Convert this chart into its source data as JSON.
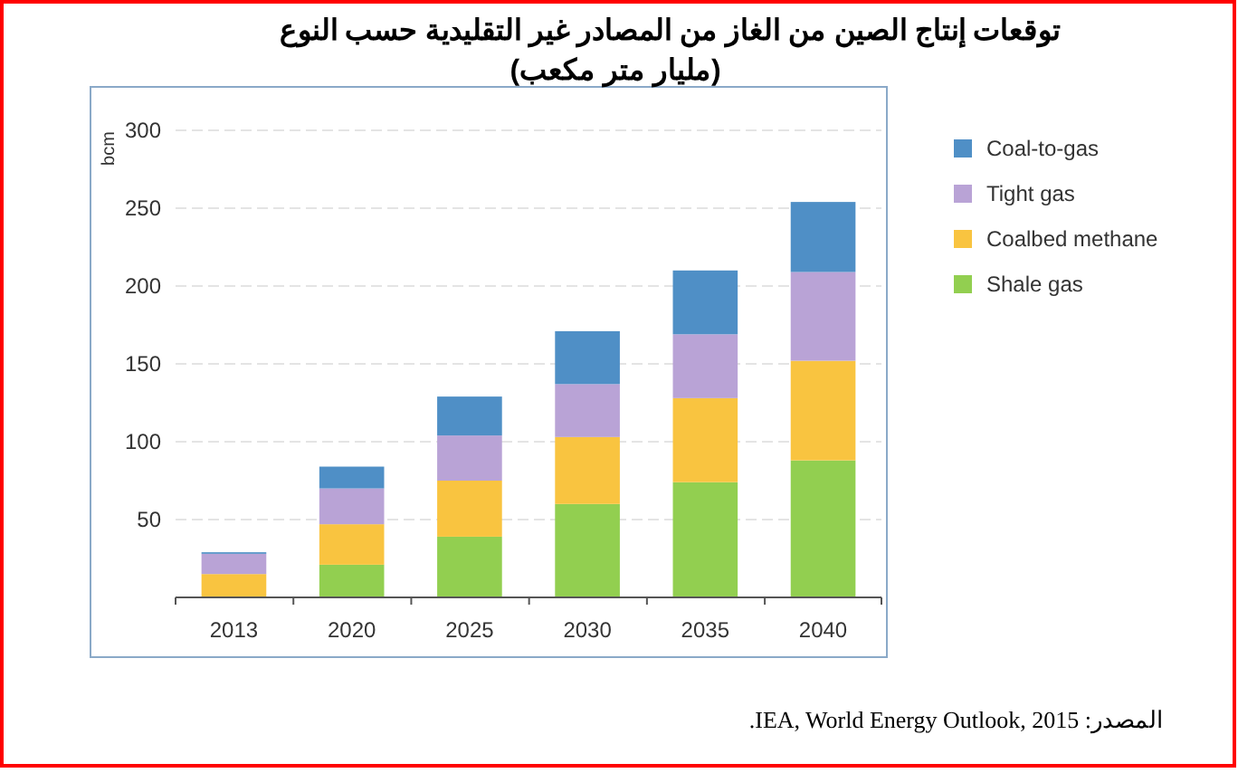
{
  "chart_data": {
    "type": "bar",
    "stacked": true,
    "title": "توقعات إنتاج الصين من الغاز من المصادر غير التقليدية حسب النوع",
    "subtitle": "(مليار متر مكعب)",
    "ylabel": "bcm",
    "categories": [
      "2013",
      "2020",
      "2025",
      "2030",
      "2035",
      "2040"
    ],
    "series": [
      {
        "name": "Shale gas",
        "color": "#92cf50",
        "values": [
          0,
          21,
          39,
          60,
          74,
          88
        ]
      },
      {
        "name": "Coalbed methane",
        "color": "#f9c440",
        "values": [
          15,
          26,
          36,
          43,
          54,
          64
        ]
      },
      {
        "name": "Tight gas",
        "color": "#b9a3d6",
        "values": [
          13,
          23,
          29,
          34,
          41,
          57
        ]
      },
      {
        "name": "Coal-to-gas",
        "color": "#4f8fc6",
        "values": [
          1,
          14,
          25,
          34,
          41,
          45
        ]
      }
    ],
    "ylim": [
      0,
      300
    ],
    "yticks": [
      50,
      100,
      150,
      200,
      250,
      300
    ],
    "grid": "y",
    "legend": "right",
    "annotations": [
      "المصدر: IEA, World Energy Outlook, 2015."
    ]
  }
}
